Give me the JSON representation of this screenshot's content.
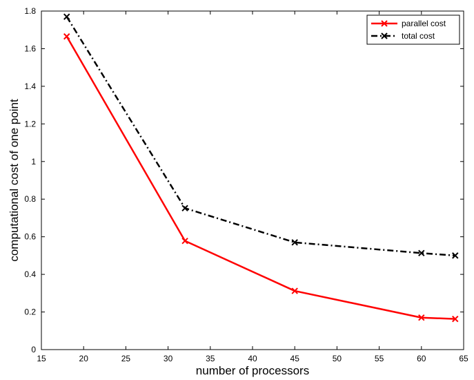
{
  "chart_data": {
    "type": "line",
    "title": "",
    "xlabel": "number of processors",
    "ylabel": "computational cost of one point",
    "xlim": [
      15,
      65
    ],
    "ylim": [
      0,
      1.8
    ],
    "xticks": [
      15,
      20,
      25,
      30,
      35,
      40,
      45,
      50,
      55,
      60,
      65
    ],
    "yticks": [
      0,
      0.2,
      0.4,
      0.6,
      0.8,
      1,
      1.2,
      1.4,
      1.6,
      1.8
    ],
    "xtick_labels": [
      "15",
      "20",
      "25",
      "30",
      "35",
      "40",
      "45",
      "50",
      "55",
      "60",
      "65"
    ],
    "ytick_labels": [
      "0",
      "0.2",
      "0.4",
      "0.6",
      "0.8",
      "1",
      "1.2",
      "1.4",
      "1.6",
      "1.8"
    ],
    "grid": false,
    "legend_position": "top-right",
    "x": [
      18,
      32,
      45,
      60,
      64
    ],
    "series": [
      {
        "name": "parallel cost",
        "values": [
          1.665,
          0.578,
          0.312,
          0.17,
          0.163
        ],
        "color": "#ff0000",
        "line_style": "solid",
        "marker": "x"
      },
      {
        "name": "total cost",
        "values": [
          1.77,
          0.752,
          0.57,
          0.513,
          0.5
        ],
        "color": "#000000",
        "line_style": "dash-dot",
        "marker": "x"
      }
    ]
  }
}
